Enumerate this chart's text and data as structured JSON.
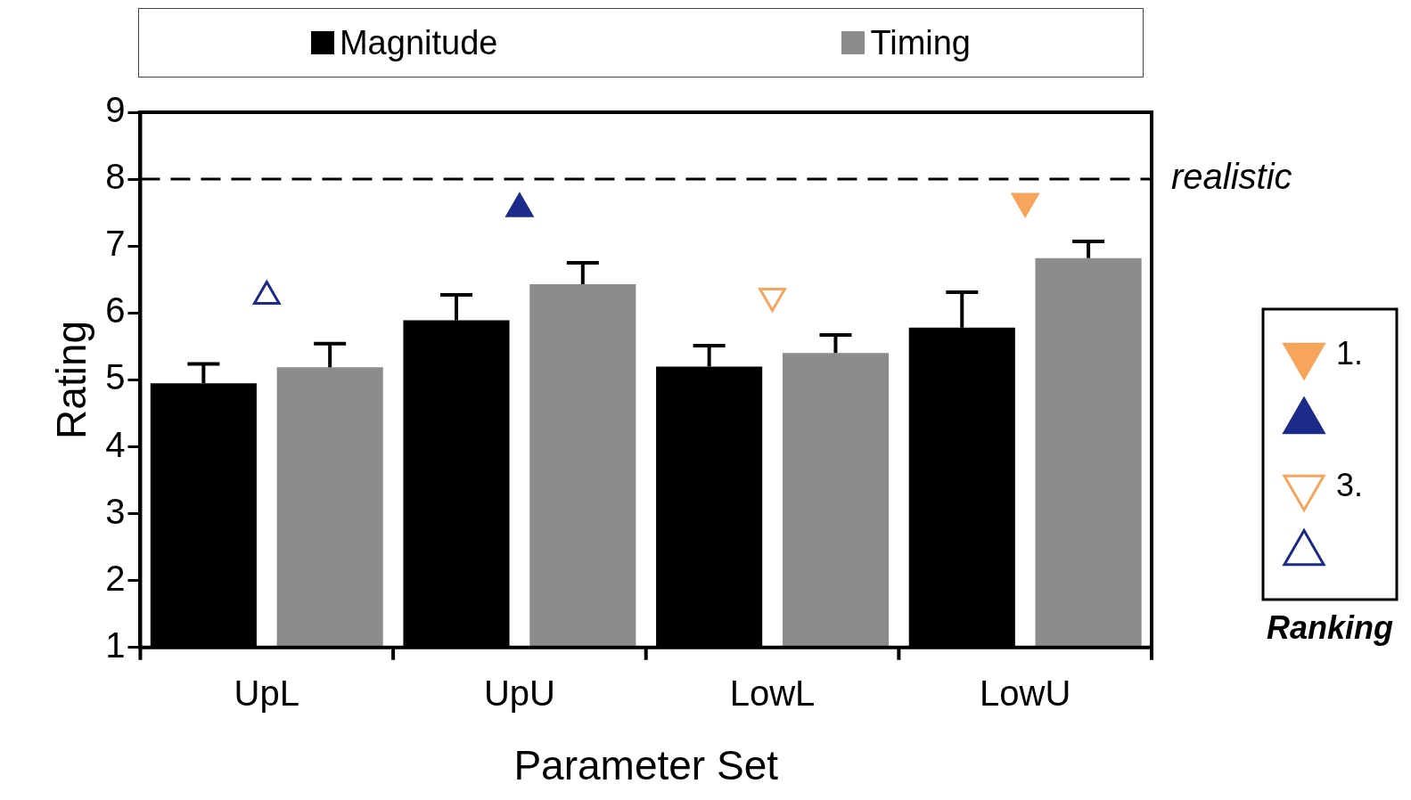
{
  "chart_data": {
    "type": "bar",
    "xlabel": "Parameter Set",
    "ylabel": "Rating",
    "legend": "top",
    "legend_title": "Ranking",
    "grid": false,
    "categories": [
      "UpL",
      "UpU",
      "LowL",
      "LowU"
    ],
    "ylim": [
      1,
      9
    ],
    "yticks": [
      1,
      2,
      3,
      4,
      5,
      6,
      7,
      8,
      9
    ],
    "series": [
      {
        "name": "Magnitude",
        "color": "#000000",
        "values": [
          4.95,
          5.89,
          5.2,
          5.78
        ],
        "errors": [
          [
            4.95,
            5.24
          ],
          [
            5.89,
            6.27
          ],
          [
            5.2,
            5.51
          ],
          [
            5.78,
            6.31
          ]
        ]
      },
      {
        "name": "Timing",
        "color": "#8c8c8c",
        "values": [
          5.19,
          6.43,
          5.4,
          6.82
        ],
        "errors": [
          [
            5.19,
            5.54
          ],
          [
            6.43,
            6.75
          ],
          [
            5.4,
            5.67
          ],
          [
            6.82,
            7.07
          ]
        ]
      },
      {
        "type": "scatter",
        "name": "1.",
        "color": "#f7a45c",
        "marker": "triangle-down",
        "x": [
          "LowU"
        ],
        "values": [
          7.67
        ]
      },
      {
        "type": "scatter",
        "color": "#1c2a8a",
        "marker": "triangle",
        "x": [
          "UpU"
        ],
        "values": [
          7.56
        ]
      },
      {
        "type": "scatter",
        "name": "3.",
        "color": "#f7a45c",
        "marker": "triangle-down-open",
        "x": [
          "LowL"
        ],
        "values": [
          6.25
        ]
      },
      {
        "type": "scatter",
        "color": "#1c2a8a",
        "marker": "triangle-open",
        "x": [
          "UpL"
        ],
        "values": [
          6.25
        ]
      }
    ],
    "ref_lines": [
      {
        "axis": "y",
        "value": 8,
        "label": "realistic",
        "color": "#000000",
        "line_style": "dashed"
      }
    ]
  }
}
